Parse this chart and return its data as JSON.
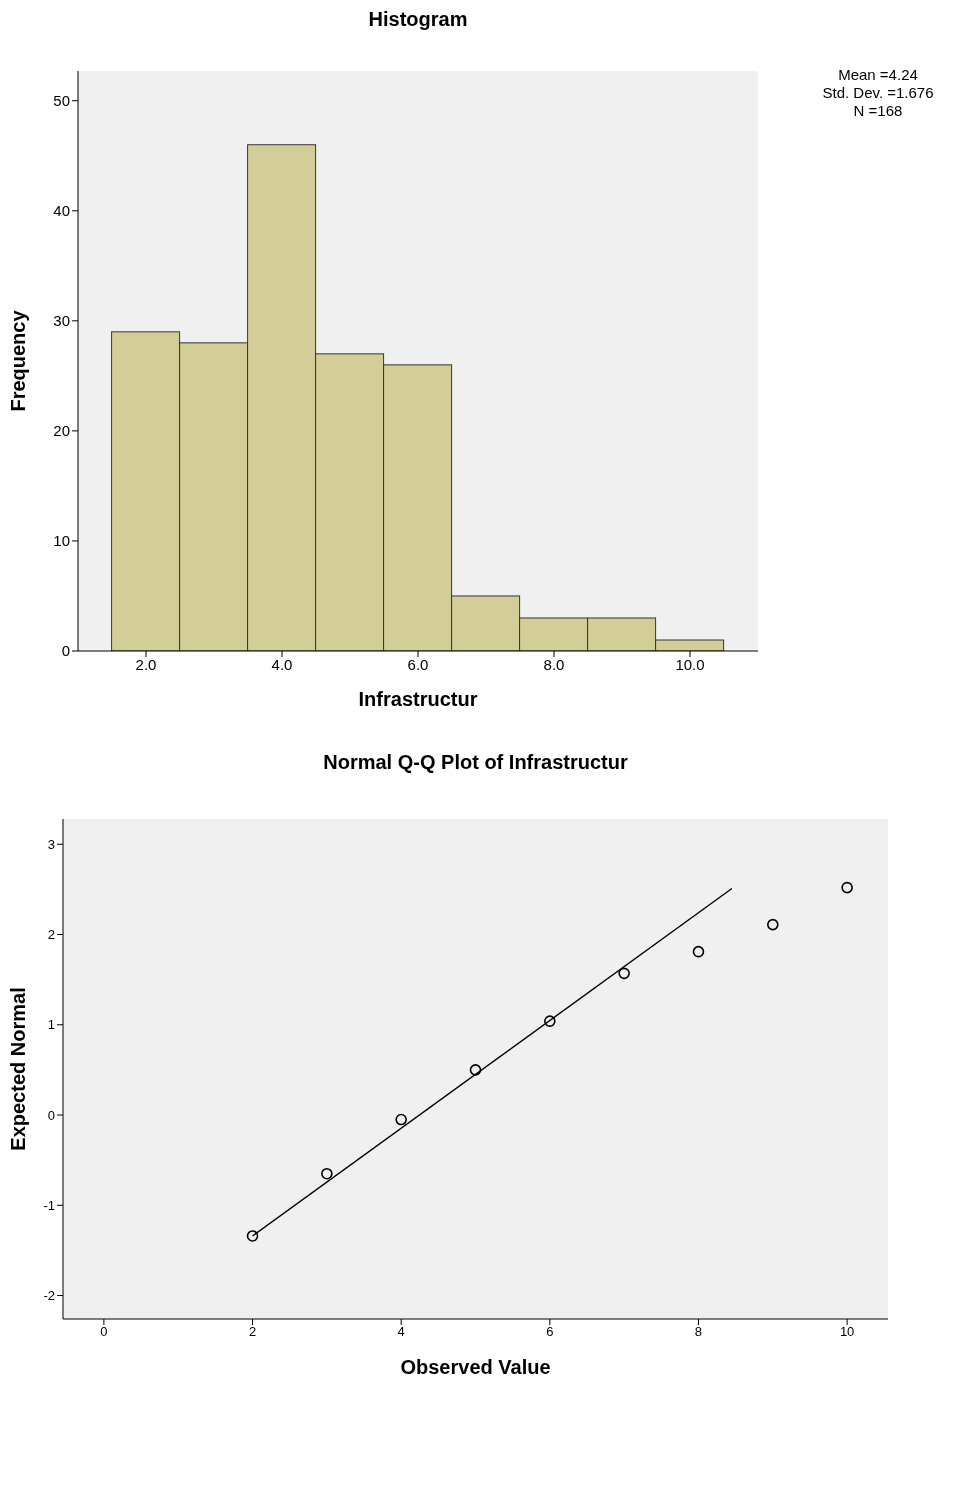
{
  "chart_data": [
    {
      "type": "histogram",
      "title": "Histogram",
      "xlabel": "Infrastructur",
      "ylabel": "Frequency",
      "bins": [
        1.5,
        2.5,
        3.5,
        4.5,
        5.5,
        6.5,
        7.5,
        8.5,
        9.5,
        10.5
      ],
      "values": [
        29,
        28,
        46,
        27,
        26,
        5,
        3,
        3,
        1
      ],
      "color": "#d3ce97",
      "xlim": [
        1.0,
        11.0
      ],
      "xticks": [
        {
          "value": 2,
          "label": "2.0"
        },
        {
          "value": 4,
          "label": "4.0"
        },
        {
          "value": 6,
          "label": "6.0"
        },
        {
          "value": 8,
          "label": "8.0"
        },
        {
          "value": 10,
          "label": "10.0"
        }
      ],
      "ylim": [
        0,
        52.7
      ],
      "yticks": [
        0,
        10,
        20,
        30,
        40,
        50
      ],
      "grid": false,
      "legend": false,
      "annotations": [
        "Mean =4.24",
        "Std. Dev. =1.676",
        "N =168"
      ]
    },
    {
      "type": "scatter",
      "title": "Normal Q-Q Plot of Infrastructur",
      "xlabel": "Observed Value",
      "ylabel": "Expected Normal",
      "series": [
        {
          "type": "scatter",
          "marker": "circle",
          "color": "#000000",
          "x": [
            2,
            3,
            4,
            5,
            6,
            7,
            8,
            9,
            10
          ],
          "values": [
            -1.34,
            -0.65,
            -0.05,
            0.5,
            1.04,
            1.57,
            1.81,
            2.11,
            2.52
          ]
        },
        {
          "type": "line",
          "marker": "none",
          "color": "#000000",
          "x": [
            2,
            8.45
          ],
          "values": [
            -1.34,
            2.51
          ]
        }
      ],
      "xlim": [
        -0.55,
        10.55
      ],
      "xticks": [
        0,
        2,
        4,
        6,
        8,
        10
      ],
      "ylim": [
        -2.26,
        3.28
      ],
      "yticks": [
        -2,
        -1,
        0,
        1,
        2,
        3
      ],
      "grid": false,
      "legend": false,
      "line_style": "solid"
    }
  ]
}
